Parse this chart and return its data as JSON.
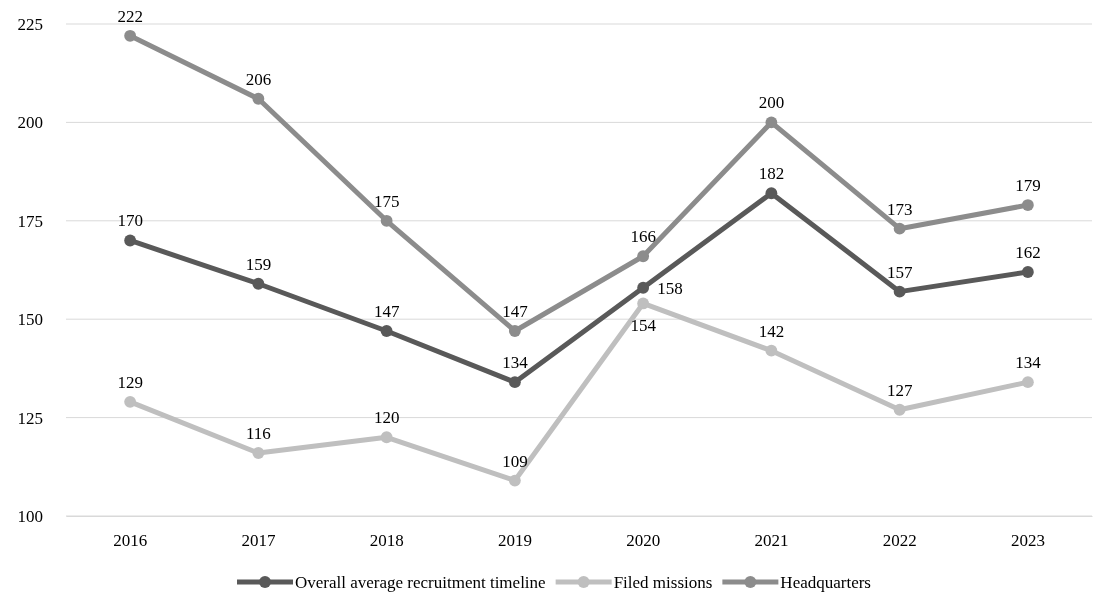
{
  "chart_data": {
    "type": "line",
    "categories": [
      "2016",
      "2017",
      "2018",
      "2019",
      "2020",
      "2021",
      "2022",
      "2023"
    ],
    "series": [
      {
        "name": "Overall average recruitment timeline",
        "color": "#595959",
        "values": [
          170,
          159,
          147,
          134,
          158,
          182,
          157,
          162
        ]
      },
      {
        "name": "Filed missions",
        "color": "#bfbfbf",
        "values": [
          129,
          116,
          120,
          109,
          154,
          142,
          127,
          134
        ]
      },
      {
        "name": "Headquarters",
        "color": "#8c8c8c",
        "values": [
          222,
          206,
          175,
          147,
          166,
          200,
          173,
          179
        ]
      }
    ],
    "ylim": [
      100,
      225
    ],
    "yticks": [
      100,
      125,
      150,
      175,
      200,
      225
    ],
    "grid": "y",
    "legend": "bottom",
    "marker": "circle",
    "line_style": "solid",
    "data_labels": true
  }
}
